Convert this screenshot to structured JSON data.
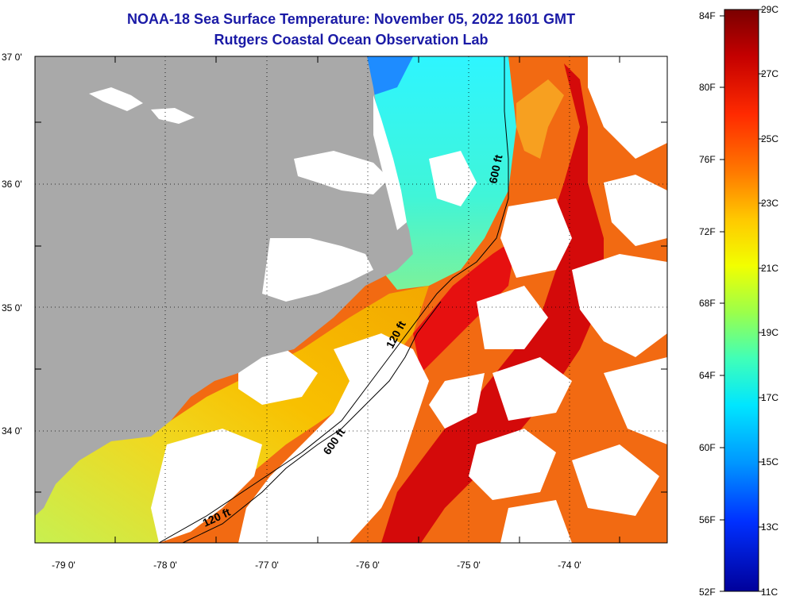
{
  "header": {
    "title": "NOAA-18 Sea Surface Temperature:  November 05, 2022 1601 GMT",
    "subtitle": "Rutgers Coastal Ocean Observation Lab"
  },
  "axes": {
    "lat_labels": [
      "37 0'",
      "36 0'",
      "35 0'",
      "34 0'"
    ],
    "lon_labels": [
      "-79 0'",
      "-78 0'",
      "-77 0'",
      "-76 0'",
      "-75 0'",
      "-74 0'"
    ]
  },
  "contours": {
    "shelf_label": "120 ft",
    "slope_label": "600 ft"
  },
  "colorbar": {
    "fahrenheit": [
      "84F",
      "80F",
      "76F",
      "72F",
      "68F",
      "64F",
      "60F",
      "56F",
      "52F"
    ],
    "celsius": [
      "29C",
      "27C",
      "25C",
      "23C",
      "21C",
      "19C",
      "17C",
      "15C",
      "13C",
      "11C"
    ]
  },
  "colors": {
    "land": "#a9a9a9",
    "cloud": "#ffffff",
    "title": "#1a1aa6"
  }
}
